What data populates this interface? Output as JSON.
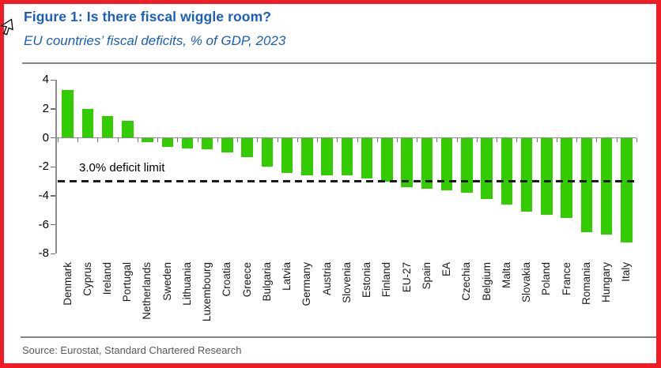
{
  "header": {
    "title": "Figure 1: Is there fiscal wiggle room?",
    "subtitle": "EU countries’ fiscal deficits, % of GDP, 2023"
  },
  "chart_data": {
    "type": "bar",
    "title": "Figure 1: Is there fiscal wiggle room?",
    "subtitle": "EU countries’ fiscal deficits, % of GDP, 2023",
    "categories": [
      "Denmark",
      "Cyprus",
      "Ireland",
      "Portugal",
      "Netherlands",
      "Sweden",
      "Lithuania",
      "Luxembourg",
      "Croatia",
      "Greece",
      "Bulgaria",
      "Latvia",
      "Germany",
      "Austria",
      "Slovenia",
      "Estonia",
      "Finland",
      "EU-27",
      "Spain",
      "EA",
      "Czechia",
      "Belgium",
      "Malta",
      "Slovakia",
      "Poland",
      "France",
      "Romania",
      "Hungary",
      "Italy"
    ],
    "values": [
      3.3,
      2.0,
      1.5,
      1.2,
      -0.3,
      -0.6,
      -0.7,
      -0.8,
      -1.0,
      -1.3,
      -2.0,
      -2.4,
      -2.6,
      -2.6,
      -2.6,
      -2.8,
      -3.0,
      -3.4,
      -3.5,
      -3.6,
      -3.8,
      -4.2,
      -4.6,
      -5.1,
      -5.3,
      -5.5,
      -6.5,
      -6.7,
      -7.2
    ],
    "xlabel": "",
    "ylabel": "",
    "ylim": [
      -8,
      4
    ],
    "yticks": [
      4,
      2,
      0,
      -2,
      -4,
      -6,
      -8
    ],
    "grid": false,
    "legend": "none",
    "bar_color": "#33CC00",
    "reference_line": {
      "value": -3.0,
      "label": "3.0% deficit limit",
      "style": "dashed",
      "color": "#1A1A1A"
    }
  },
  "footer": {
    "source": "Source: Eurostat, Standard Chartered Research"
  },
  "colors": {
    "title_blue": "#1B5EBD",
    "bar_green": "#33CC00",
    "frame_red": "#EE1C25",
    "divider_gray": "#7F8386",
    "source_gray": "#595959"
  }
}
